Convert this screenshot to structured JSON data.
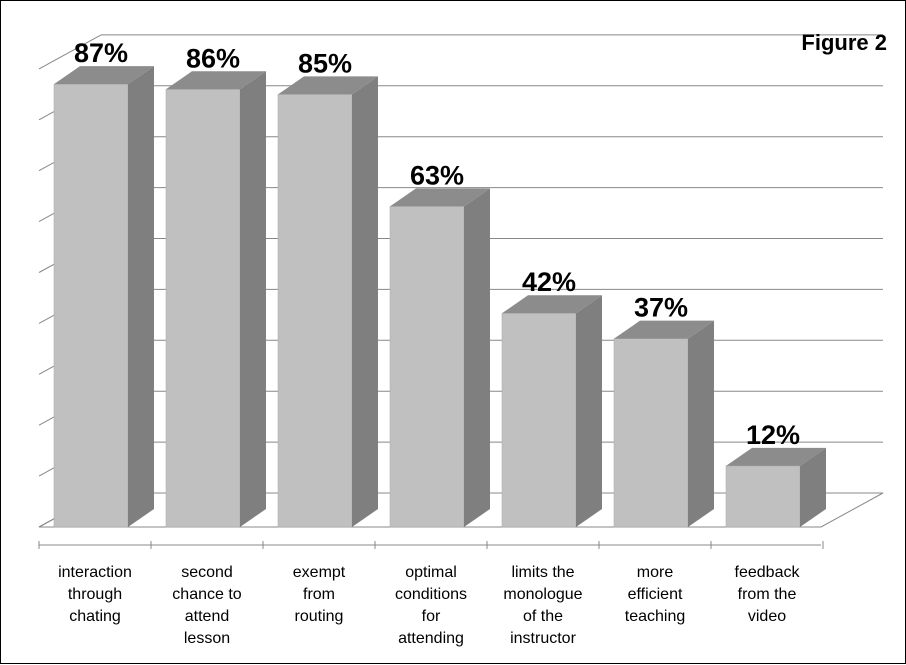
{
  "chart_data": {
    "type": "bar",
    "title": "Figure 2",
    "categories": [
      [
        "interaction",
        "through",
        "chating"
      ],
      [
        "second",
        "chance to",
        "attend",
        "lesson"
      ],
      [
        "exempt",
        "from",
        "routing"
      ],
      [
        "optimal",
        "conditions",
        "for",
        "attending"
      ],
      [
        "limits the",
        "monologue",
        "of the",
        "instructor"
      ],
      [
        "more",
        "efficient",
        "teaching"
      ],
      [
        "feedback",
        "from the",
        "video"
      ]
    ],
    "values": [
      87,
      86,
      85,
      63,
      42,
      37,
      12
    ],
    "value_labels": [
      "87%",
      "86%",
      "85%",
      "63%",
      "42%",
      "37%",
      "12%"
    ],
    "ylim": [
      0,
      90
    ],
    "grid": true,
    "style": "3d-column",
    "colors": {
      "bar_front": "#c0c0c0",
      "bar_side": "#7f7f7f",
      "bar_top": "#8c8c8c",
      "grid": "#888888",
      "axis": "#888888"
    }
  }
}
